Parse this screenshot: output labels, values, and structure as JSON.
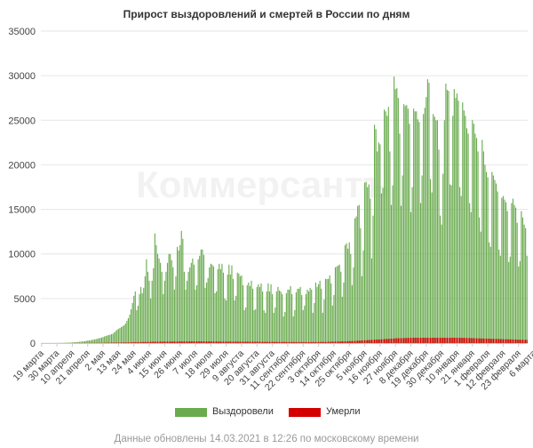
{
  "chart_data": {
    "type": "bar",
    "title": "Прирост выздоровлений и смертей в России по дням",
    "watermark": "Коммерсантъ",
    "footer": "Данные обновлены 14.03.2021 в 12:26 по московскому времени",
    "ylim": [
      0,
      35000
    ],
    "y_ticks": [
      "0",
      "5000",
      "10000",
      "15000",
      "20000",
      "25000",
      "30000",
      "35000"
    ],
    "y_tick_values": [
      0,
      5000,
      10000,
      15000,
      20000,
      25000,
      30000,
      35000
    ],
    "x_tick_labels": [
      "19 марта",
      "30 марта",
      "10 апреля",
      "21 апреля",
      "2 мая",
      "13 мая",
      "24 мая",
      "4 июня",
      "15 июня",
      "26 июня",
      "7 июля",
      "18 июля",
      "29 июля",
      "9 августа",
      "20 августа",
      "31 августа",
      "11 сентября",
      "22 сентября",
      "3 октября",
      "14 октября",
      "25 октября",
      "5 ноября",
      "16 ноября",
      "27 ноября",
      "8 декабря",
      "19 декабря",
      "30 декабря",
      "10 января",
      "21 января",
      "1 февраля",
      "12 февраля",
      "23 февраля",
      "6 марта"
    ],
    "x_tick_interval_days": 11,
    "grid": true,
    "legend_position": "bottom",
    "colors": {
      "recovered": "#6aab4f",
      "deaths": "#d40000"
    },
    "series": [
      {
        "name": "Выздоровели",
        "values": [
          0,
          0,
          0,
          0,
          0,
          0,
          0,
          0,
          0,
          0,
          0,
          5,
          5,
          10,
          15,
          20,
          20,
          30,
          40,
          45,
          50,
          60,
          75,
          90,
          100,
          115,
          120,
          150,
          160,
          180,
          200,
          220,
          250,
          280,
          300,
          320,
          350,
          400,
          420,
          450,
          500,
          540,
          580,
          620,
          680,
          750,
          800,
          860,
          900,
          950,
          1000,
          1050,
          1200,
          1350,
          1500,
          1600,
          1700,
          1800,
          1900,
          2000,
          2200,
          2500,
          2800,
          3200,
          3800,
          4500,
          5300,
          5800,
          3700,
          4200,
          5500,
          6300,
          5600,
          6200,
          7500,
          9400,
          8000,
          7000,
          5000,
          7000,
          8400,
          12300,
          11000,
          10000,
          9500,
          9000,
          8000,
          5500,
          7000,
          8000,
          9000,
          10000,
          10000,
          9300,
          8500,
          6000,
          7500,
          10800,
          10400,
          11000,
          12600,
          11700,
          8000,
          6000,
          7000,
          8000,
          8500,
          9000,
          9500,
          8800,
          6000,
          6500,
          9400,
          9800,
          10500,
          10500,
          9900,
          6200,
          6800,
          7300,
          8500,
          8900,
          8800,
          8600,
          5600,
          5800,
          8300,
          8900,
          8300,
          8900,
          7900,
          5000,
          4800,
          7700,
          8800,
          7700,
          8700,
          7200,
          4800,
          5300,
          7900,
          7800,
          7500,
          7600,
          6500,
          3700,
          4000,
          6500,
          6800,
          6400,
          7000,
          6100,
          3700,
          3800,
          6300,
          6600,
          6300,
          6700,
          5800,
          3700,
          3400,
          5800,
          6700,
          5800,
          6600,
          5500,
          3400,
          4000,
          5800,
          6300,
          5900,
          5800,
          5500,
          3000,
          3500,
          5600,
          6000,
          6000,
          6400,
          5500,
          3000,
          3700,
          5700,
          6100,
          6100,
          6300,
          5400,
          3700,
          4200,
          5500,
          6000,
          5800,
          6200,
          6000,
          3400,
          4500,
          6800,
          6300,
          6600,
          7000,
          6100,
          3400,
          4900,
          7200,
          7200,
          7200,
          7600,
          6700,
          4200,
          5400,
          8500,
          8600,
          8700,
          8800,
          8000,
          5200,
          6800,
          11000,
          11200,
          10600,
          11300,
          10000,
          6500,
          8500,
          14000,
          14200,
          15400,
          15500,
          12900,
          7500,
          10400,
          18000,
          18100,
          17500,
          17800,
          16200,
          9500,
          14300,
          24500,
          24000,
          21500,
          22500,
          22300,
          16800,
          17400,
          26200,
          26000,
          25500,
          26500,
          21500,
          15500,
          17700,
          29900,
          28500,
          28600,
          27500,
          23500,
          15400,
          18800,
          26800,
          26600,
          26700,
          26300,
          24600,
          14700,
          17500,
          26300,
          26000,
          26000,
          25100,
          24800,
          15700,
          18800,
          25700,
          26400,
          27600,
          29600,
          29200,
          18400,
          16900,
          25700,
          25400,
          25000,
          25000,
          21700,
          14300,
          13300,
          19000,
          25000,
          29100,
          28400,
          28300,
          17800,
          17700,
          25500,
          28500,
          27500,
          28000,
          27200,
          17500,
          16500,
          27000,
          26100,
          25500,
          24100,
          23500,
          15700,
          14700,
          25000,
          24600,
          23500,
          23000,
          21500,
          14100,
          12500,
          22800,
          21500,
          20000,
          19200,
          18600,
          11300,
          10800,
          19200,
          18800,
          18300,
          17900,
          17000,
          10500,
          9800,
          16300,
          16500,
          16100,
          15800,
          14800,
          9100,
          9700,
          15700,
          16200,
          15500,
          15200,
          13500,
          8600,
          9200,
          14800,
          14100,
          13300,
          12900,
          9800
        ]
      },
      {
        "name": "Умерли",
        "values": [
          0,
          0,
          0,
          0,
          0,
          0,
          0,
          0,
          0,
          0,
          0,
          0,
          0,
          0,
          1,
          1,
          1,
          2,
          2,
          3,
          3,
          4,
          5,
          5,
          6,
          7,
          8,
          9,
          10,
          11,
          12,
          13,
          14,
          15,
          16,
          17,
          18,
          19,
          20,
          21,
          22,
          24,
          26,
          28,
          30,
          32,
          35,
          38,
          40,
          42,
          45,
          48,
          50,
          52,
          55,
          58,
          60,
          63,
          66,
          70,
          73,
          76,
          80,
          84,
          88,
          92,
          96,
          100,
          104,
          108,
          112,
          116,
          120,
          124,
          128,
          131,
          134,
          137,
          140,
          143,
          146,
          149,
          152,
          155,
          157,
          159,
          161,
          163,
          165,
          167,
          169,
          171,
          172,
          173,
          174,
          175,
          176,
          177,
          178,
          179,
          180,
          181,
          182,
          183,
          184,
          185,
          186,
          187,
          188,
          189,
          190,
          189,
          188,
          187,
          186,
          185,
          184,
          183,
          182,
          181,
          180,
          179,
          178,
          177,
          176,
          175,
          174,
          173,
          172,
          171,
          170,
          169,
          168,
          167,
          166,
          165,
          164,
          163,
          162,
          161,
          160,
          159,
          158,
          157,
          156,
          155,
          154,
          153,
          152,
          151,
          150,
          149,
          148,
          147,
          146,
          145,
          144,
          143,
          142,
          141,
          140,
          139,
          138,
          137,
          136,
          135,
          134,
          133,
          132,
          131,
          130,
          129,
          128,
          127,
          126,
          125,
          124,
          123,
          122,
          121,
          120,
          119,
          118,
          117,
          116,
          115,
          114,
          113,
          112,
          111,
          110,
          110,
          112,
          114,
          116,
          118,
          120,
          122,
          124,
          126,
          128,
          130,
          133,
          136,
          139,
          142,
          145,
          150,
          155,
          160,
          165,
          170,
          175,
          180,
          185,
          190,
          195,
          200,
          205,
          210,
          215,
          220,
          225,
          230,
          240,
          250,
          260,
          270,
          280,
          290,
          300,
          310,
          320,
          330,
          340,
          350,
          360,
          370,
          380,
          390,
          400,
          410,
          420,
          430,
          440,
          450,
          460,
          470,
          480,
          490,
          500,
          510,
          520,
          530,
          540,
          545,
          550,
          555,
          560,
          565,
          570,
          575,
          580,
          585,
          590,
          595,
          600,
          600,
          600,
          600,
          600,
          600,
          600,
          600,
          600,
          600,
          600,
          600,
          600,
          600,
          600,
          600,
          600,
          600,
          600,
          600,
          600,
          600,
          600,
          600,
          600,
          600,
          600,
          600,
          600,
          600,
          600,
          600,
          600,
          600,
          595,
          590,
          585,
          580,
          575,
          570,
          565,
          560,
          555,
          550,
          545,
          540,
          535,
          530,
          525,
          520,
          515,
          510,
          505,
          500,
          495,
          490,
          485,
          480,
          475,
          470,
          465,
          460,
          455,
          450,
          445,
          440,
          435,
          430,
          425,
          420,
          415,
          410,
          405,
          400,
          395,
          390,
          385,
          380,
          375,
          370,
          365,
          360
        ]
      }
    ]
  }
}
